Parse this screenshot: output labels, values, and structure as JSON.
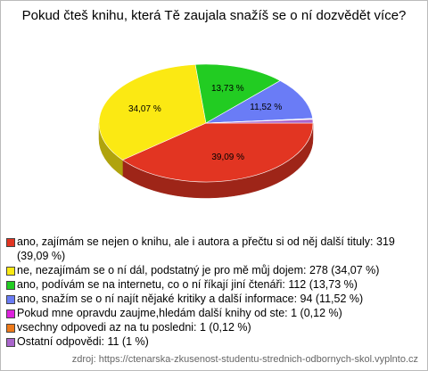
{
  "chart_data": {
    "type": "pie3d",
    "title": "Pokud čteš knihu, která Tě zaujala snažíš se o ní dozvědět více?",
    "categories": [
      "ano, zajímám se nejen o knihu, ale i autora a přečtu si od něj další tituly: 319 (39,09 %)",
      "ne, nezajímám se o ní dál, podstatný je pro mě můj dojem: 278 (34,07 %)",
      "ano, podívám se na internetu, co o ní říkají jiní čtenáři: 112 (13,73 %)",
      "ano, snažím se o ní najít nějaké kritiky a další informace: 94 (11,52 %)",
      "Pokud mne opravdu zaujme,hledám další knihy od ste: 1 (0,12 %)",
      "vsechny odpovedi az na tu posledni: 1 (0,12 %)",
      "Ostatní odpovědi: 11 (1 %)"
    ],
    "values": [
      39.09,
      34.07,
      13.73,
      11.52,
      0.12,
      0.12,
      1
    ],
    "value_labels": [
      "39,09 %",
      "34,07 %",
      "13,73 %",
      "11,52 %",
      null,
      null,
      null
    ],
    "colors": [
      "#e23522",
      "#fbe913",
      "#22cc22",
      "#6a7cf6",
      "#dd22dd",
      "#ee7a1a",
      "#aa66cc"
    ],
    "source": "zdroj: https://ctenarska-zkusenost-studentu-strednich-odbornych-skol.vyplnto.cz"
  }
}
